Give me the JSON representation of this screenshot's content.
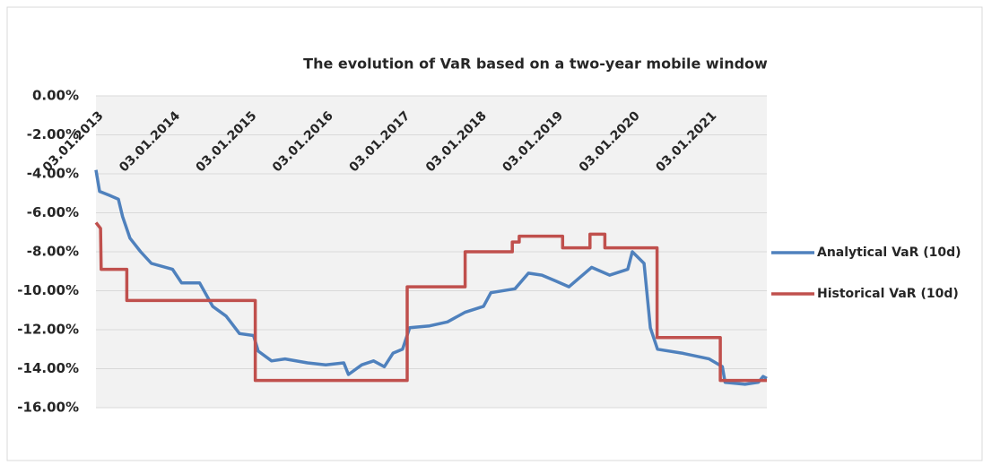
{
  "chart_data": {
    "type": "line",
    "title": "The evolution of VaR based on a two-year mobile window",
    "xlim": [
      "03.01.2013",
      "05.10.2021"
    ],
    "xticks": [
      "03.01.2013",
      "03.01.2014",
      "03.01.2015",
      "03.01.2016",
      "03.01.2017",
      "03.01.2018",
      "03.01.2019",
      "03.01.2020",
      "03.01.2021"
    ],
    "ylim": [
      -16,
      0
    ],
    "yticks": [
      {
        "value": 0,
        "label": "0.00%"
      },
      {
        "value": -2,
        "label": "-2.00%"
      },
      {
        "value": -4,
        "label": "-4.00%"
      },
      {
        "value": -6,
        "label": "-6.00%"
      },
      {
        "value": -8,
        "label": "-8.00%"
      },
      {
        "value": -10,
        "label": "-10.00%"
      },
      {
        "value": -12,
        "label": "-12.00%"
      },
      {
        "value": -14,
        "label": "-14.00%"
      },
      {
        "value": -16,
        "label": "-16.00%"
      }
    ],
    "grid": true,
    "legend": "right",
    "series": [
      {
        "name": "Analytical VaR (10d)",
        "color": "#4f81bd",
        "x": [
          "03.01.2013",
          "20.01.2013",
          "07.03.2013",
          "20.04.2013",
          "10.05.2013",
          "14.06.2013",
          "04.08.2013",
          "24.09.2013",
          "03.01.2014",
          "15.02.2014",
          "12.05.2014",
          "13.07.2014",
          "15.09.2014",
          "18.11.2014",
          "24.01.2015",
          "15.02.2015",
          "20.04.2015",
          "23.06.2015",
          "08.10.2015",
          "03.01.2016",
          "29.03.2016",
          "20.04.2016",
          "23.06.2016",
          "18.08.2016",
          "08.10.2016",
          "19.11.2016",
          "03.01.2017",
          "06.02.2017",
          "12.05.2017",
          "05.08.2017",
          "29.10.2017",
          "24.01.2018",
          "28.02.2018",
          "23.06.2018",
          "26.08.2018",
          "29.10.2018",
          "03.01.2019",
          "07.03.2019",
          "23.06.2019",
          "17.09.2019",
          "12.12.2019",
          "03.01.2020",
          "28.02.2020",
          "29.03.2020",
          "02.05.2020",
          "26.08.2020",
          "03.01.2021",
          "07.03.2021",
          "20.03.2021",
          "23.06.2021",
          "26.08.2021",
          "17.09.2021",
          "05.10.2021"
        ],
        "values": [
          -3.8,
          -4.9,
          -5.1,
          -5.3,
          -6.2,
          -7.3,
          -8.0,
          -8.6,
          -8.9,
          -9.6,
          -9.6,
          -10.8,
          -11.3,
          -12.2,
          -12.3,
          -13.1,
          -13.6,
          -13.5,
          -13.7,
          -13.8,
          -13.7,
          -14.3,
          -13.8,
          -13.6,
          -13.9,
          -13.2,
          -13.0,
          -11.9,
          -11.8,
          -11.6,
          -11.1,
          -10.8,
          -10.1,
          -9.9,
          -9.1,
          -9.2,
          -9.5,
          -9.8,
          -8.8,
          -9.2,
          -8.9,
          -8.0,
          -8.6,
          -11.9,
          -13.0,
          -13.2,
          -13.5,
          -13.9,
          -14.7,
          -14.8,
          -14.7,
          -14.4,
          -14.5
        ]
      },
      {
        "name": "Historical VaR (10d)",
        "color": "#c0504d",
        "x": [
          "03.01.2013",
          "25.01.2013",
          "28.01.2013",
          "30.05.2013",
          "30.05.2013",
          "01.02.2015",
          "01.02.2015",
          "25.01.2017",
          "25.01.2017",
          "28.10.2017",
          "28.10.2017",
          "10.06.2018",
          "10.06.2018",
          "13.07.2018",
          "13.07.2018",
          "05.02.2019",
          "05.02.2019",
          "15.06.2019",
          "15.06.2019",
          "25.08.2019",
          "25.08.2019",
          "30.04.2020",
          "30.04.2020",
          "25.02.2021",
          "25.02.2021",
          "05.10.2021"
        ],
        "values": [
          -6.5,
          -6.8,
          -8.9,
          -8.9,
          -10.5,
          -10.5,
          -14.6,
          -14.6,
          -9.8,
          -9.8,
          -8.0,
          -8.0,
          -7.5,
          -7.5,
          -7.2,
          -7.2,
          -7.8,
          -7.8,
          -7.1,
          -7.1,
          -7.8,
          -7.8,
          -12.4,
          -12.4,
          -14.6,
          -14.6
        ]
      }
    ]
  }
}
